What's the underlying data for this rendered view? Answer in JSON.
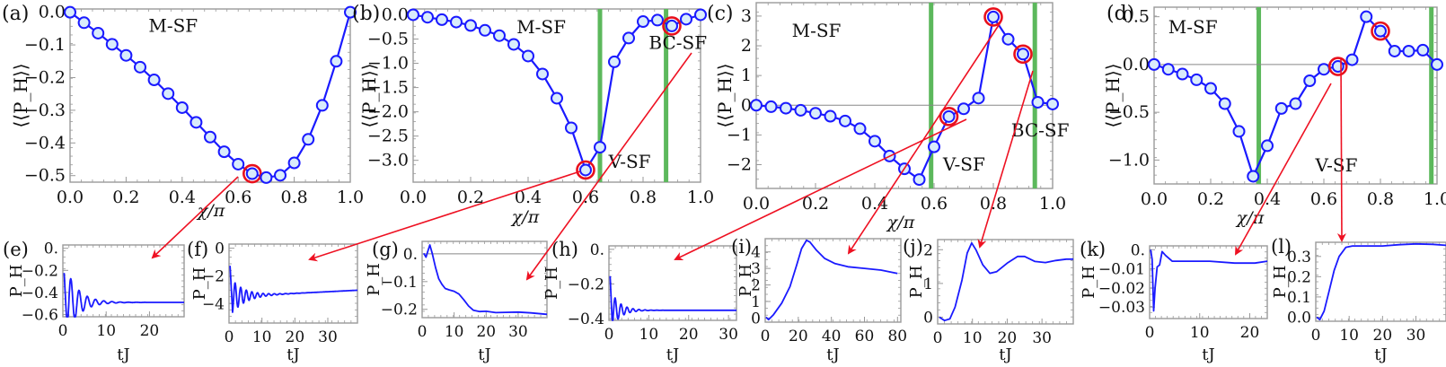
{
  "figure": {
    "colors": {
      "series": "#1a1aff",
      "marker_fill": "#d9ecfb",
      "highlight": "#e8101c",
      "transition_line": "#5cb85c",
      "arrow": "#ee1122",
      "zero_line": "#888888",
      "frame": "#9a9a9a"
    }
  },
  "chart_data": [
    {
      "id": "a",
      "panel_label": "(a)",
      "type": "line",
      "xlabel": "χ/π",
      "ylabel": "⟨⟨P_H⟩⟩",
      "xlim": [
        0,
        1
      ],
      "ylim": [
        -0.52,
        0.01
      ],
      "xticks": [
        0.0,
        0.2,
        0.4,
        0.6,
        0.8,
        1.0
      ],
      "xtick_labels": [
        "0.0",
        "0.2",
        "0.4",
        "0.6",
        "0.8",
        "1.0"
      ],
      "yticks": [
        0.0,
        -0.1,
        -0.2,
        -0.3,
        -0.4,
        -0.5
      ],
      "ytick_labels": [
        "0.0",
        "−0.1",
        "−0.2",
        "−0.3",
        "−0.4",
        "−0.5"
      ],
      "zero_line": false,
      "x": [
        0,
        0.05,
        0.1,
        0.15,
        0.2,
        0.25,
        0.3,
        0.35,
        0.4,
        0.45,
        0.5,
        0.55,
        0.6,
        0.65,
        0.7,
        0.75,
        0.8,
        0.85,
        0.9,
        0.95,
        1.0
      ],
      "y": [
        0,
        -0.032,
        -0.064,
        -0.098,
        -0.132,
        -0.168,
        -0.207,
        -0.249,
        -0.292,
        -0.337,
        -0.382,
        -0.427,
        -0.465,
        -0.494,
        -0.506,
        -0.499,
        -0.461,
        -0.389,
        -0.285,
        -0.15,
        0
      ],
      "highlighted_x": [
        0.65
      ],
      "transitions": [],
      "annotations": [
        {
          "text": "M-SF",
          "x": 0.28,
          "y": -0.06
        }
      ]
    },
    {
      "id": "b",
      "panel_label": "(b)",
      "type": "line",
      "xlabel": "χ/π",
      "ylabel": "⟨⟨P_H⟩⟩",
      "xlim": [
        0,
        1
      ],
      "ylim": [
        -3.45,
        0.12
      ],
      "xticks": [
        0.0,
        0.2,
        0.4,
        0.6,
        0.8,
        1.0
      ],
      "xtick_labels": [
        "0.0",
        "0.2",
        "0.4",
        "0.6",
        "0.8",
        "1.0"
      ],
      "yticks": [
        0.0,
        -0.5,
        -1.0,
        -1.5,
        -2.0,
        -2.5,
        -3.0
      ],
      "ytick_labels": [
        "0.0",
        "−0.5",
        "−1.0",
        "−1.5",
        "−2.0",
        "−2.5",
        "−3.0"
      ],
      "zero_line": false,
      "x": [
        0,
        0.05,
        0.1,
        0.15,
        0.2,
        0.25,
        0.3,
        0.35,
        0.4,
        0.45,
        0.5,
        0.55,
        0.6,
        0.65,
        0.7,
        0.75,
        0.8,
        0.85,
        0.9,
        0.95,
        1.0
      ],
      "y": [
        0,
        -0.05,
        -0.1,
        -0.15,
        -0.22,
        -0.32,
        -0.43,
        -0.61,
        -0.85,
        -1.22,
        -1.72,
        -2.33,
        -3.2,
        -2.73,
        -0.97,
        -0.48,
        -0.14,
        -0.11,
        -0.23,
        -0.09,
        0.0
      ],
      "highlighted_x": [
        0.6,
        0.9
      ],
      "transitions": [
        0.65,
        0.88
      ],
      "annotations": [
        {
          "text": "M-SF",
          "x": 0.36,
          "y": -0.38
        },
        {
          "text": "V-SF",
          "x": 0.68,
          "y": -3.15
        },
        {
          "text": "BC-SF",
          "x": 0.82,
          "y": -0.7
        }
      ]
    },
    {
      "id": "c",
      "panel_label": "(c)",
      "type": "line",
      "xlabel": "χ/π",
      "ylabel": "⟨⟨P_H⟩⟩",
      "xlim": [
        0,
        1
      ],
      "ylim": [
        -2.8,
        3.45
      ],
      "xticks": [
        0.0,
        0.2,
        0.4,
        0.6,
        0.8,
        1.0
      ],
      "xtick_labels": [
        "0.0",
        "0.2",
        "0.4",
        "0.6",
        "0.8",
        "1.0"
      ],
      "yticks": [
        3,
        2,
        1,
        0,
        -1,
        -2
      ],
      "ytick_labels": [
        "3",
        "2",
        "1",
        "0",
        "−1",
        "−2"
      ],
      "zero_line": true,
      "x": [
        0,
        0.05,
        0.1,
        0.15,
        0.2,
        0.25,
        0.3,
        0.35,
        0.4,
        0.45,
        0.5,
        0.55,
        0.6,
        0.65,
        0.7,
        0.75,
        0.8,
        0.85,
        0.9,
        0.95,
        1.0
      ],
      "y": [
        0,
        -0.05,
        -0.1,
        -0.17,
        -0.27,
        -0.37,
        -0.53,
        -0.79,
        -1.21,
        -1.71,
        -2.14,
        -2.5,
        -1.4,
        -0.38,
        -0.12,
        0.24,
        2.97,
        2.22,
        1.72,
        0.1,
        0.04
      ],
      "highlighted_x": [
        0.65,
        0.8,
        0.9
      ],
      "transitions": [
        0.59,
        0.94
      ],
      "annotations": [
        {
          "text": "M-SF",
          "x": 0.12,
          "y": 2.3
        },
        {
          "text": "V-SF",
          "x": 0.63,
          "y": -2.2
        },
        {
          "text": "BC-SF",
          "x": 0.86,
          "y": -1.05
        }
      ]
    },
    {
      "id": "d",
      "panel_label": "(d)",
      "type": "line",
      "xlabel": "χ/π",
      "ylabel": "⟨⟨P_H⟩⟩",
      "xlim": [
        0,
        1
      ],
      "ylim": [
        -1.25,
        0.6
      ],
      "xticks": [
        0.0,
        0.2,
        0.4,
        0.6,
        0.8,
        1.0
      ],
      "xtick_labels": [
        "0.0",
        "0.2",
        "0.4",
        "0.6",
        "0.8",
        "1.0"
      ],
      "yticks": [
        0.5,
        0.0,
        -0.5,
        -1.0
      ],
      "ytick_labels": [
        "0.5",
        "0.0",
        "−0.5",
        "−1.0"
      ],
      "zero_line": true,
      "x": [
        0,
        0.05,
        0.1,
        0.15,
        0.2,
        0.25,
        0.3,
        0.35,
        0.4,
        0.45,
        0.5,
        0.55,
        0.6,
        0.65,
        0.7,
        0.75,
        0.8,
        0.85,
        0.9,
        0.95,
        1.0
      ],
      "y": [
        0,
        -0.05,
        -0.1,
        -0.16,
        -0.25,
        -0.41,
        -0.7,
        -1.17,
        -0.85,
        -0.46,
        -0.41,
        -0.17,
        -0.05,
        -0.02,
        0.05,
        0.5,
        0.35,
        0.14,
        0.14,
        0.15,
        0.0
      ],
      "highlighted_x": [
        0.65,
        0.8
      ],
      "transitions": [
        0.37,
        0.98
      ],
      "annotations": [
        {
          "text": "M-SF",
          "x": 0.05,
          "y": 0.33
        },
        {
          "text": "V-SF",
          "x": 0.57,
          "y": -1.12
        }
      ]
    },
    {
      "id": "e",
      "panel_label": "(e)",
      "type": "line",
      "xlabel": "tJ",
      "ylabel": "P_H",
      "xlim": [
        0,
        28
      ],
      "ylim": [
        -0.62,
        0.03
      ],
      "xticks": [
        0,
        10,
        20
      ],
      "xtick_labels": [
        "0",
        "10",
        "20"
      ],
      "yticks": [
        0,
        -0.2,
        -0.4,
        -0.6
      ],
      "ytick_labels": [
        "0.",
        "−0.2",
        "−0.4",
        "−0.6"
      ],
      "zero_line": false,
      "curve": {
        "kind": "damped",
        "start": 0.0,
        "final": -0.49,
        "amp": -0.6,
        "period": 1.9,
        "decay": 2.8,
        "drop_time": 0.9,
        "drift": 0
      }
    },
    {
      "id": "f",
      "panel_label": "(f)",
      "type": "line",
      "xlabel": "tJ",
      "ylabel": "P_H",
      "xlim": [
        0,
        39
      ],
      "ylim": [
        -5.4,
        0.3
      ],
      "xticks": [
        0,
        10,
        20,
        30
      ],
      "xtick_labels": [
        "0",
        "10",
        "20",
        "30"
      ],
      "yticks": [
        0,
        -2,
        -4
      ],
      "ytick_labels": [
        "0",
        "−2",
        "−4"
      ],
      "zero_line": false,
      "curve": {
        "kind": "damped",
        "start": 0.0,
        "final": -3.5,
        "amp": -2.4,
        "period": 1.7,
        "decay": 4.0,
        "drop_time": 1.0,
        "drift": 0.012
      }
    },
    {
      "id": "g",
      "panel_label": "(g)",
      "type": "line",
      "xlabel": "tJ",
      "ylabel": "P_H",
      "xlim": [
        0,
        39
      ],
      "ylim": [
        -0.23,
        0.045
      ],
      "xticks": [
        0,
        10,
        20,
        30
      ],
      "xtick_labels": [
        "0",
        "10",
        "20",
        "30"
      ],
      "yticks": [
        0,
        -0.1,
        -0.2
      ],
      "ytick_labels": [
        "0.",
        "−0.1",
        "−0.2"
      ],
      "zero_line": true,
      "points": [
        [
          0.5,
          0.002
        ],
        [
          1.2,
          -0.012
        ],
        [
          1.8,
          0.01
        ],
        [
          2.4,
          0.032
        ],
        [
          3.2,
          0.0
        ],
        [
          4.2,
          -0.05
        ],
        [
          5.2,
          -0.09
        ],
        [
          6.2,
          -0.11
        ],
        [
          7.2,
          -0.125
        ],
        [
          8.5,
          -0.13
        ],
        [
          10,
          -0.135
        ],
        [
          11.5,
          -0.145
        ],
        [
          13,
          -0.165
        ],
        [
          14.5,
          -0.188
        ],
        [
          16,
          -0.203
        ],
        [
          18,
          -0.208
        ],
        [
          20,
          -0.207
        ],
        [
          23,
          -0.212
        ],
        [
          26,
          -0.211
        ],
        [
          30,
          -0.21
        ],
        [
          34,
          -0.213
        ],
        [
          39,
          -0.218
        ]
      ]
    },
    {
      "id": "h",
      "panel_label": "(h)",
      "type": "line",
      "xlabel": "tJ",
      "ylabel": "P_H",
      "xlim": [
        0,
        32
      ],
      "ylim": [
        -0.41,
        0.02
      ],
      "xticks": [
        0,
        10,
        20,
        30
      ],
      "xtick_labels": [
        "0",
        "10",
        "20",
        "30"
      ],
      "yticks": [
        0,
        -0.2,
        -0.4
      ],
      "ytick_labels": [
        "0.",
        "−0.2",
        "−0.4"
      ],
      "zero_line": false,
      "curve": {
        "kind": "damped",
        "start": 0.0,
        "final": -0.352,
        "amp": -0.2,
        "period": 1.5,
        "decay": 2.2,
        "drop_time": 0.8,
        "drift": 0
      }
    },
    {
      "id": "i",
      "panel_label": "(i)",
      "type": "line",
      "xlabel": "tJ",
      "ylabel": "P_H",
      "xlim": [
        0,
        82
      ],
      "ylim": [
        -0.25,
        4.8
      ],
      "xticks": [
        0,
        20,
        40,
        60,
        80
      ],
      "xtick_labels": [
        "0",
        "20",
        "40",
        "60",
        "80"
      ],
      "yticks": [
        0,
        1,
        2,
        3,
        4
      ],
      "ytick_labels": [
        "0",
        "1",
        "2",
        "3",
        "4"
      ],
      "zero_line": false,
      "points": [
        [
          0.5,
          0.05
        ],
        [
          2,
          -0.1
        ],
        [
          5,
          0.2
        ],
        [
          10,
          0.9
        ],
        [
          15,
          1.9
        ],
        [
          19,
          3.2
        ],
        [
          22,
          4.2
        ],
        [
          25,
          4.7
        ],
        [
          27,
          4.6
        ],
        [
          31,
          4.1
        ],
        [
          36,
          3.6
        ],
        [
          42,
          3.3
        ],
        [
          50,
          3.1
        ],
        [
          60,
          3.0
        ],
        [
          70,
          2.9
        ],
        [
          80,
          2.7
        ]
      ]
    },
    {
      "id": "j",
      "panel_label": "(j)",
      "type": "line",
      "xlabel": "tJ",
      "ylabel": "P_H",
      "xlim": [
        0,
        39
      ],
      "ylim": [
        -0.2,
        2.3
      ],
      "xticks": [
        0,
        10,
        20,
        30
      ],
      "xtick_labels": [
        "0",
        "10",
        "20",
        "30"
      ],
      "yticks": [
        0,
        1,
        2
      ],
      "ytick_labels": [
        "0",
        "1",
        "2"
      ],
      "zero_line": false,
      "points": [
        [
          0.5,
          0.0
        ],
        [
          2,
          -0.1
        ],
        [
          3.5,
          -0.05
        ],
        [
          5,
          0.3
        ],
        [
          7,
          1.1
        ],
        [
          8.5,
          1.9
        ],
        [
          9.8,
          2.2
        ],
        [
          11,
          2.0
        ],
        [
          13,
          1.55
        ],
        [
          15,
          1.3
        ],
        [
          17,
          1.35
        ],
        [
          20,
          1.6
        ],
        [
          23,
          1.8
        ],
        [
          25,
          1.8
        ],
        [
          28,
          1.65
        ],
        [
          31,
          1.62
        ],
        [
          34,
          1.68
        ],
        [
          37,
          1.72
        ],
        [
          39,
          1.72
        ]
      ]
    },
    {
      "id": "k",
      "panel_label": "(k)",
      "type": "line",
      "xlabel": "tJ",
      "ylabel": "P_H",
      "xlim": [
        0,
        23.5
      ],
      "ylim": [
        -0.036,
        0.002
      ],
      "xticks": [
        0,
        10,
        20
      ],
      "xtick_labels": [
        "0",
        "10",
        "20"
      ],
      "yticks": [
        0,
        -0.01,
        -0.02,
        -0.03
      ],
      "ytick_labels": [
        "0.",
        "−0.01",
        "−0.02",
        "−0.03"
      ],
      "zero_line": false,
      "points": [
        [
          0.2,
          0.0
        ],
        [
          0.5,
          -0.005
        ],
        [
          0.8,
          -0.032
        ],
        [
          1.1,
          -0.02
        ],
        [
          1.5,
          -0.009
        ],
        [
          2.0,
          -0.008
        ],
        [
          2.5,
          -0.001
        ],
        [
          3.2,
          -0.003
        ],
        [
          4.5,
          -0.006
        ],
        [
          7,
          -0.006
        ],
        [
          12,
          -0.006
        ],
        [
          17,
          -0.007
        ],
        [
          21,
          -0.007
        ],
        [
          23.5,
          -0.006
        ]
      ]
    },
    {
      "id": "l",
      "panel_label": "(l)",
      "type": "line",
      "xlabel": "tJ",
      "ylabel": "P_H",
      "xlim": [
        0,
        39
      ],
      "ylim": [
        -0.02,
        0.37
      ],
      "xticks": [
        0,
        10,
        20,
        30
      ],
      "xtick_labels": [
        "0",
        "10",
        "20",
        "30"
      ],
      "yticks": [
        0.0,
        0.1,
        0.2,
        0.3
      ],
      "ytick_labels": [
        "0.0",
        "0.1",
        "0.2",
        "0.3"
      ],
      "zero_line": false,
      "points": [
        [
          0.3,
          0.0
        ],
        [
          1.2,
          -0.012
        ],
        [
          2.5,
          0.03
        ],
        [
          4,
          0.13
        ],
        [
          5.5,
          0.23
        ],
        [
          7,
          0.3
        ],
        [
          9,
          0.345
        ],
        [
          11,
          0.352
        ],
        [
          15,
          0.352
        ],
        [
          20,
          0.352
        ],
        [
          25,
          0.358
        ],
        [
          30,
          0.362
        ],
        [
          35,
          0.36
        ],
        [
          39,
          0.355
        ]
      ]
    }
  ],
  "arrows": [
    {
      "from_panel": "a",
      "from_x": 0.65,
      "to_panel": "e"
    },
    {
      "from_panel": "b",
      "from_x": 0.6,
      "to_panel": "f"
    },
    {
      "from_panel": "b",
      "from_x": 0.9,
      "to_panel": "g"
    },
    {
      "from_panel": "c",
      "from_x": 0.65,
      "to_panel": "h"
    },
    {
      "from_panel": "c",
      "from_x": 0.8,
      "to_panel": "i"
    },
    {
      "from_panel": "c",
      "from_x": 0.9,
      "to_panel": "j"
    },
    {
      "from_panel": "d",
      "from_x": 0.65,
      "to_panel": "k"
    },
    {
      "from_panel": "d",
      "from_x": 0.8,
      "to_panel": "l"
    }
  ]
}
